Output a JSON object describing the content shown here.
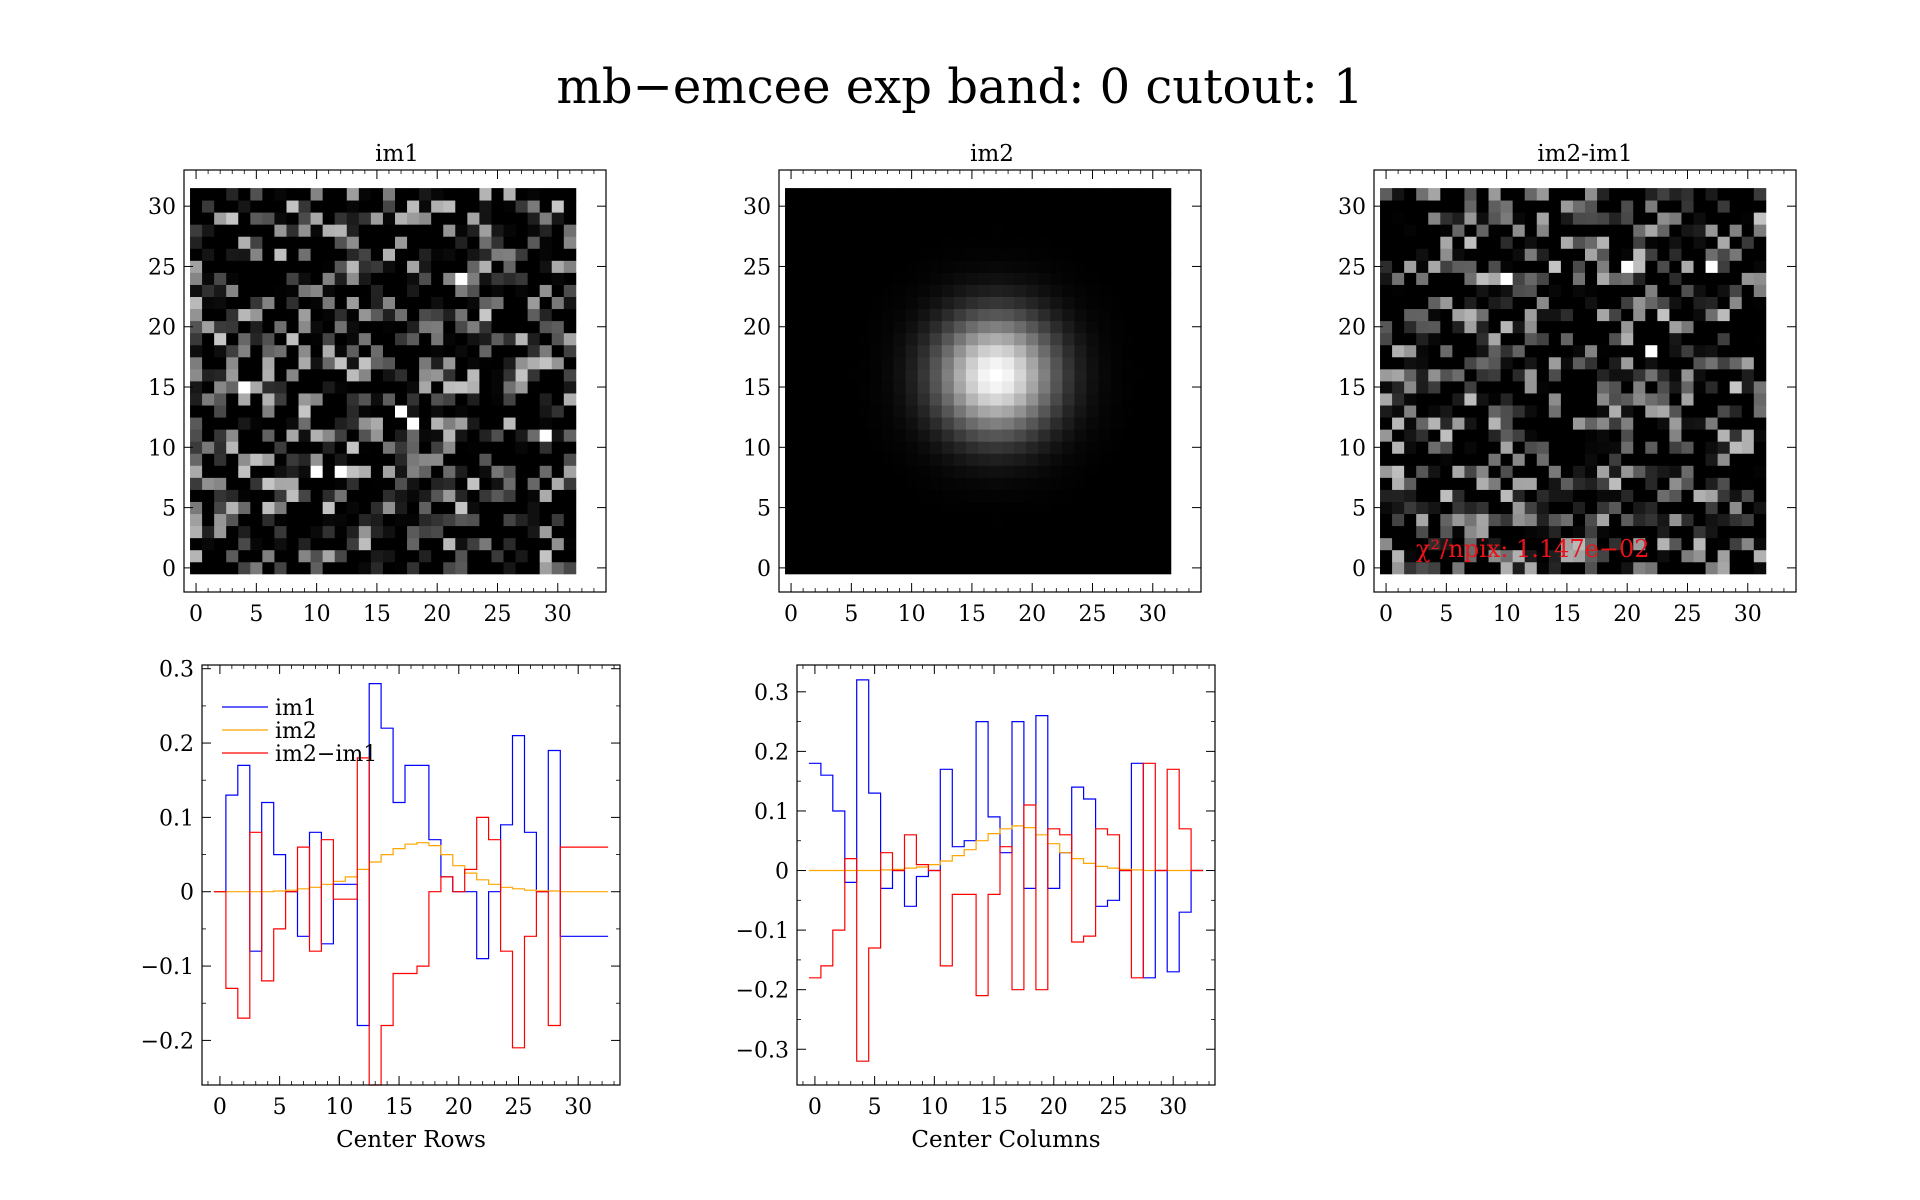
{
  "figure": {
    "title": "mb−emcee exp band: 0 cutout: 1"
  },
  "colors": {
    "im1": "#0000ff",
    "im2": "#ffa500",
    "diff": "#ff0000",
    "chi_text": "#e8141a",
    "frame": "#000000"
  },
  "chart_data": [
    {
      "type": "heatmap",
      "title": "im1",
      "grid_size": 32,
      "colormap": "grayscale",
      "content": "noise",
      "seed": 11,
      "bright_pixels": [
        [
          4,
          15
        ],
        [
          10,
          8
        ],
        [
          12,
          8
        ],
        [
          22,
          24
        ],
        [
          29,
          11
        ],
        [
          17,
          13
        ],
        [
          18,
          12
        ]
      ],
      "xlim": [
        -1,
        34
      ],
      "ylim": [
        -2,
        33
      ],
      "xticks": [
        0,
        5,
        10,
        15,
        20,
        25,
        30
      ],
      "yticks": [
        0,
        5,
        10,
        15,
        20,
        25,
        30
      ]
    },
    {
      "type": "heatmap",
      "title": "im2",
      "grid_size": 32,
      "colormap": "grayscale",
      "content": "gaussian",
      "center": [
        17,
        16
      ],
      "sigma": 3.4,
      "xlim": [
        -1,
        34
      ],
      "ylim": [
        -2,
        33
      ],
      "xticks": [
        0,
        5,
        10,
        15,
        20,
        25,
        30
      ],
      "yticks": [
        0,
        5,
        10,
        15,
        20,
        25,
        30
      ]
    },
    {
      "type": "heatmap",
      "title": "im2-im1",
      "grid_size": 32,
      "colormap": "grayscale",
      "content": "noise",
      "seed": 29,
      "bright_pixels": [
        [
          22,
          18
        ],
        [
          20,
          25
        ],
        [
          10,
          24
        ],
        [
          27,
          25
        ]
      ],
      "annotation": "χ²/npix: 1.147e−02",
      "xlim": [
        -1,
        34
      ],
      "ylim": [
        -2,
        33
      ],
      "xticks": [
        0,
        5,
        10,
        15,
        20,
        25,
        30
      ],
      "yticks": [
        0,
        5,
        10,
        15,
        20,
        25,
        30
      ]
    },
    {
      "type": "line",
      "step": true,
      "xlabel": "Center Rows",
      "ylabel": "",
      "xlim": [
        -1.5,
        33.5
      ],
      "ylim": [
        -0.26,
        0.305
      ],
      "xticks": [
        0,
        5,
        10,
        15,
        20,
        25,
        30
      ],
      "yticks": [
        -0.2,
        -0.1,
        0,
        0.1,
        0.2,
        0.3
      ],
      "yticklabels": [
        "−0.2",
        "−0.1",
        "0",
        "0.1",
        "0.2",
        "0.3"
      ],
      "legend": [
        "im1",
        "im2",
        "im2−im1"
      ],
      "legend_position": "top-left",
      "x": [
        0,
        1,
        2,
        3,
        4,
        5,
        6,
        7,
        8,
        9,
        10,
        11,
        12,
        13,
        14,
        15,
        16,
        17,
        18,
        19,
        20,
        21,
        22,
        23,
        24,
        25,
        26,
        27,
        28,
        29,
        30,
        31,
        32
      ],
      "series": [
        {
          "name": "im1",
          "values": [
            0,
            0.13,
            0.17,
            -0.08,
            0.12,
            0.05,
            0.0,
            -0.06,
            0.08,
            -0.07,
            0.01,
            0.01,
            -0.18,
            0.28,
            0.22,
            0.12,
            0.17,
            0.17,
            0.07,
            0.02,
            0.0,
            0.0,
            -0.09,
            0.0,
            0.09,
            0.21,
            0.08,
            0.0,
            0.19,
            -0.06,
            -0.06,
            -0.06,
            -0.06
          ]
        },
        {
          "name": "im2",
          "values": [
            0,
            0,
            0,
            0,
            0,
            0.001,
            0.002,
            0.004,
            0.006,
            0.01,
            0.014,
            0.02,
            0.03,
            0.04,
            0.05,
            0.058,
            0.064,
            0.066,
            0.062,
            0.05,
            0.035,
            0.025,
            0.016,
            0.01,
            0.006,
            0.004,
            0.002,
            0.001,
            0.001,
            0,
            0,
            0,
            0
          ]
        },
        {
          "name": "im2−im1",
          "values": [
            0,
            -0.13,
            -0.17,
            0.08,
            -0.12,
            -0.05,
            0.0,
            0.06,
            -0.08,
            0.07,
            -0.01,
            -0.01,
            0.18,
            -0.26,
            -0.18,
            -0.11,
            -0.11,
            -0.1,
            0.0,
            0.02,
            0.0,
            0.03,
            0.1,
            0.07,
            -0.08,
            -0.21,
            -0.06,
            0.0,
            -0.18,
            0.06,
            0.06,
            0.06,
            0.06
          ]
        }
      ]
    },
    {
      "type": "line",
      "step": true,
      "xlabel": "Center Columns",
      "ylabel": "",
      "xlim": [
        -1.5,
        33.5
      ],
      "ylim": [
        -0.36,
        0.345
      ],
      "xticks": [
        0,
        5,
        10,
        15,
        20,
        25,
        30
      ],
      "yticks": [
        -0.3,
        -0.2,
        -0.1,
        0,
        0.1,
        0.2,
        0.3
      ],
      "yticklabels": [
        "−0.3",
        "−0.2",
        "−0.1",
        "0",
        "0.1",
        "0.2",
        "0.3"
      ],
      "x": [
        0,
        1,
        2,
        3,
        4,
        5,
        6,
        7,
        8,
        9,
        10,
        11,
        12,
        13,
        14,
        15,
        16,
        17,
        18,
        19,
        20,
        21,
        22,
        23,
        24,
        25,
        26,
        27,
        28,
        29,
        30,
        31,
        32
      ],
      "series": [
        {
          "name": "im1",
          "values": [
            0.18,
            0.16,
            0.1,
            -0.02,
            0.32,
            0.13,
            -0.03,
            0.0,
            -0.06,
            -0.01,
            0.0,
            0.17,
            0.04,
            0.05,
            0.25,
            0.09,
            0.03,
            0.25,
            -0.03,
            0.26,
            -0.03,
            0.03,
            0.14,
            0.12,
            -0.06,
            -0.05,
            0.0,
            0.18,
            -0.18,
            0.0,
            -0.17,
            -0.07,
            0.0
          ]
        },
        {
          "name": "im2",
          "values": [
            0,
            0,
            0,
            0,
            0,
            0,
            0.001,
            0.002,
            0.004,
            0.006,
            0.01,
            0.016,
            0.025,
            0.035,
            0.05,
            0.062,
            0.07,
            0.075,
            0.072,
            0.06,
            0.045,
            0.03,
            0.02,
            0.012,
            0.007,
            0.004,
            0.002,
            0.001,
            0,
            0,
            0,
            0,
            0
          ]
        },
        {
          "name": "im2−im1",
          "values": [
            -0.18,
            -0.16,
            -0.1,
            0.02,
            -0.32,
            -0.13,
            0.03,
            0.0,
            0.06,
            0.01,
            0.0,
            -0.16,
            -0.04,
            -0.04,
            -0.21,
            -0.04,
            0.04,
            -0.2,
            0.11,
            -0.2,
            0.07,
            0.06,
            -0.12,
            -0.11,
            0.07,
            0.06,
            0.0,
            -0.18,
            0.18,
            0.0,
            0.17,
            0.07,
            0.0
          ]
        }
      ]
    }
  ]
}
